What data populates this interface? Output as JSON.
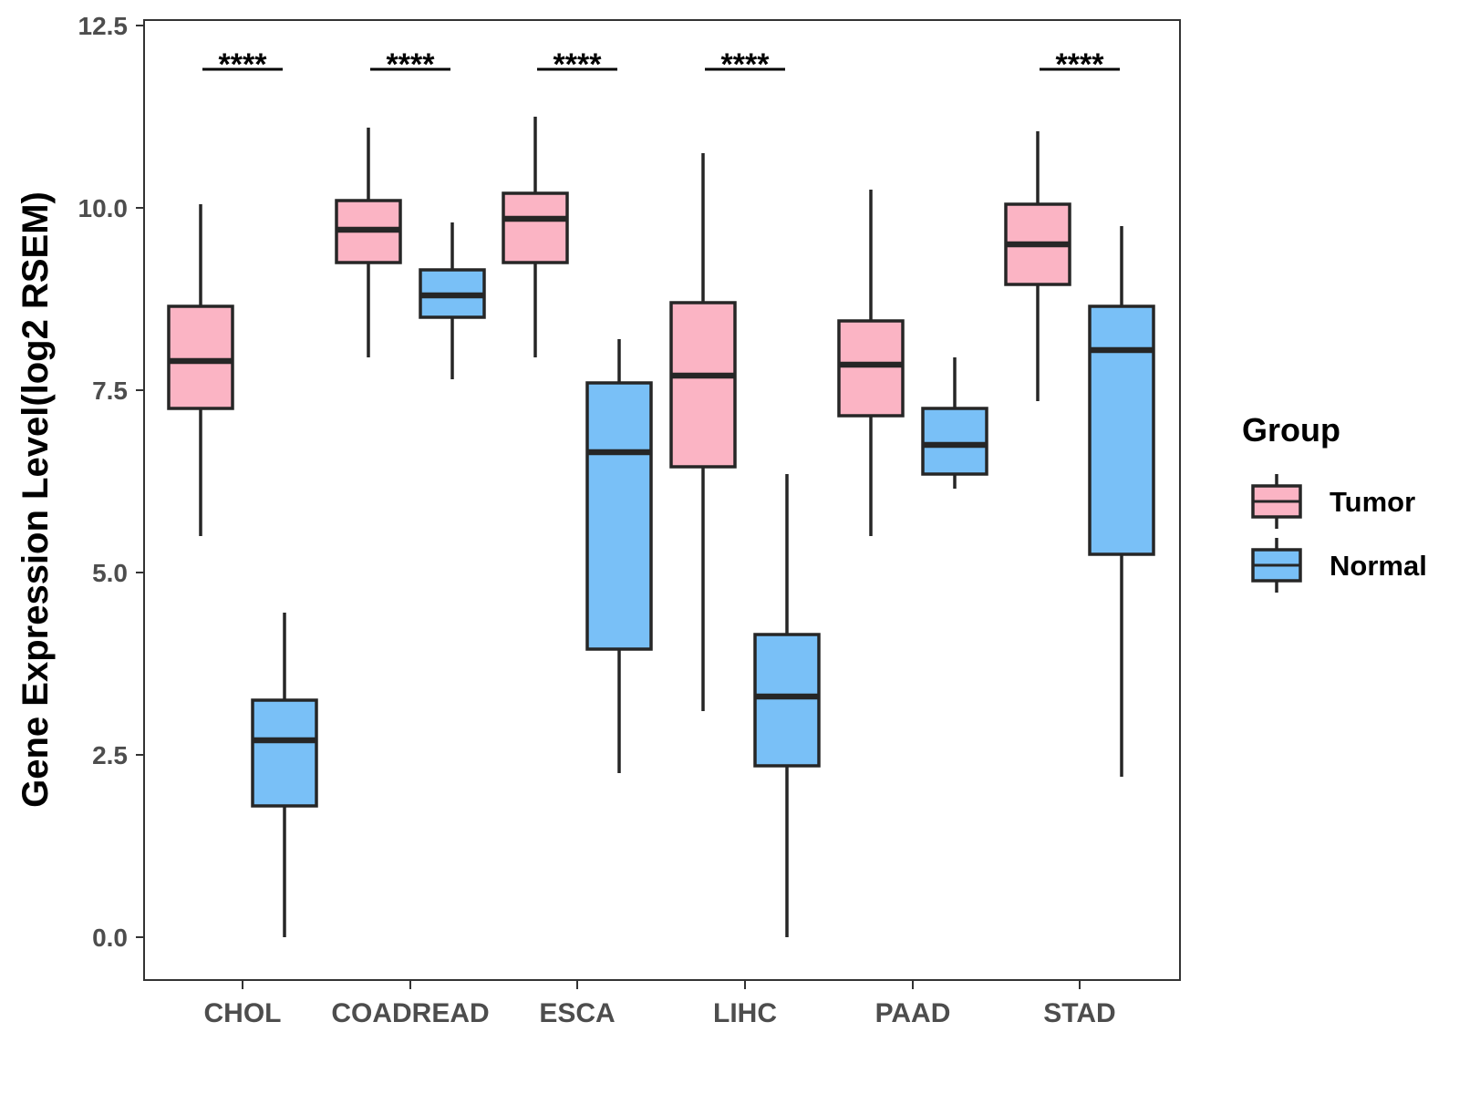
{
  "chart_data": {
    "type": "boxplot",
    "title": "",
    "xlabel": "",
    "ylabel": "Gene Expression Level(log2 RSEM)",
    "ylim": [
      -0.3,
      12.7
    ],
    "yticks": [
      0.0,
      2.5,
      5.0,
      7.5,
      10.0,
      12.5
    ],
    "ytick_labels": [
      "0.0",
      "2.5",
      "5.0",
      "7.5",
      "10.0",
      "12.5"
    ],
    "grid": false,
    "categories": [
      "CHOL",
      "COADREAD",
      "ESCA",
      "LIHC",
      "PAAD",
      "STAD"
    ],
    "series": [
      {
        "name": "Tumor",
        "color": "#fbb4c4",
        "boxes": [
          {
            "min": 5.5,
            "q1": 7.25,
            "median": 7.9,
            "q3": 8.65,
            "max": 10.05
          },
          {
            "min": 7.95,
            "q1": 9.25,
            "median": 9.7,
            "q3": 10.1,
            "max": 11.1
          },
          {
            "min": 7.95,
            "q1": 9.25,
            "median": 9.85,
            "q3": 10.2,
            "max": 11.25
          },
          {
            "min": 3.1,
            "q1": 6.45,
            "median": 7.7,
            "q3": 8.7,
            "max": 10.75
          },
          {
            "min": 5.5,
            "q1": 7.15,
            "median": 7.85,
            "q3": 8.45,
            "max": 10.25
          },
          {
            "min": 7.35,
            "q1": 8.95,
            "median": 9.5,
            "q3": 10.05,
            "max": 11.05
          }
        ]
      },
      {
        "name": "Normal",
        "color": "#79c0f7",
        "boxes": [
          {
            "min": 0.0,
            "q1": 1.8,
            "median": 2.7,
            "q3": 3.25,
            "max": 4.45
          },
          {
            "min": 7.65,
            "q1": 8.5,
            "median": 8.8,
            "q3": 9.15,
            "max": 9.8
          },
          {
            "min": 2.25,
            "q1": 3.95,
            "median": 6.65,
            "q3": 7.6,
            "max": 8.2
          },
          {
            "min": 0.0,
            "q1": 2.35,
            "median": 3.3,
            "q3": 4.15,
            "max": 6.35
          },
          {
            "min": 6.15,
            "q1": 6.35,
            "median": 6.75,
            "q3": 7.25,
            "max": 7.95
          },
          {
            "min": 2.2,
            "q1": 5.25,
            "median": 8.05,
            "q3": 8.65,
            "max": 9.75
          }
        ]
      }
    ],
    "significance": [
      {
        "category": "CHOL",
        "label": "****"
      },
      {
        "category": "COADREAD",
        "label": "****"
      },
      {
        "category": "ESCA",
        "label": "****"
      },
      {
        "category": "LIHC",
        "label": "****"
      },
      {
        "category": "STAD",
        "label": "****"
      }
    ],
    "significance_y": 11.9,
    "legend": {
      "title": "Group",
      "position": "right",
      "entries": [
        "Tumor",
        "Normal"
      ]
    }
  }
}
